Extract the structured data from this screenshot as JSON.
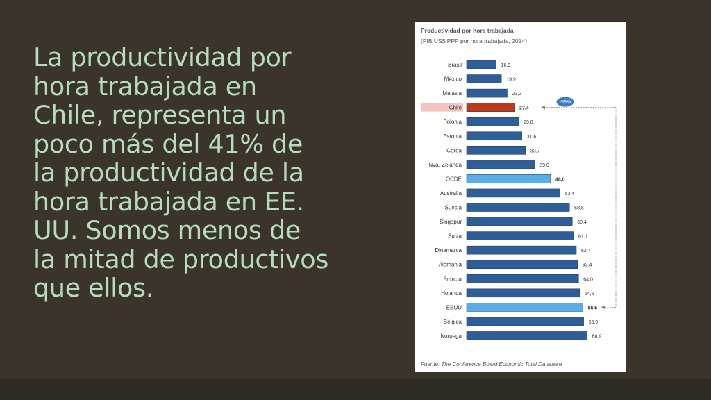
{
  "slide": {
    "body_lines": [
      "La productividad por",
      "hora trabajada en",
      "Chile, representa un",
      "poco más del 41% de",
      "la productividad de la",
      "hora trabajada en EE.",
      "UU. Somos menos de",
      "la mitad de productivos",
      "que ellos."
    ]
  },
  "colors": {
    "background": "#3a342b",
    "text": "#b6dcbc",
    "bar_default": "#2f5e97",
    "bar_chile": "#c0391b",
    "bar_highlight": "#5aaee6",
    "chile_label_bg": "#f2c5c0",
    "badge": "#3f7bc4"
  },
  "chart_data": {
    "type": "bar",
    "orientation": "horizontal",
    "title": "Productividad por hora trabajada",
    "subtitle": "(PIB US$ PPP por hora trabajada, 2014)",
    "categories": [
      "Brasil",
      "México",
      "Malasia",
      "Chile",
      "Polonia",
      "Estonia",
      "Corea",
      "Nva. Zelanda",
      "OCDE",
      "Australia",
      "Suecia",
      "Singapur",
      "Suiza",
      "Dinamarca",
      "Alemania",
      "Francia",
      "Holanda",
      "EEUU",
      "Bélgica",
      "Noruega"
    ],
    "values": [
      16.9,
      19.9,
      23.2,
      27.4,
      29.8,
      31.6,
      33.7,
      39.0,
      48.0,
      53.4,
      58.8,
      60.4,
      61.1,
      62.7,
      63.4,
      64.0,
      64.6,
      66.5,
      66.9,
      68.9
    ],
    "value_labels": [
      "16,9",
      "19,9",
      "23,2",
      "27,4",
      "29,8",
      "31,6",
      "33,7",
      "39,0",
      "48,0",
      "53,4",
      "58,8",
      "60,4",
      "61,1",
      "62,7",
      "63,4",
      "64,0",
      "64,6",
      "66,5",
      "66,9",
      "68,9"
    ],
    "highlight": {
      "Chile": "chile",
      "OCDE": "light",
      "EEUU": "light"
    },
    "bold_value_labels": [
      "Chile",
      "OCDE",
      "EEUU"
    ],
    "annotation": {
      "text": "-59%",
      "from": "EEUU",
      "to": "Chile"
    },
    "source": "Fuente: The Conference Board Economic Total Database",
    "xlim": [
      0,
      70
    ],
    "grid": false,
    "legend": "none"
  }
}
